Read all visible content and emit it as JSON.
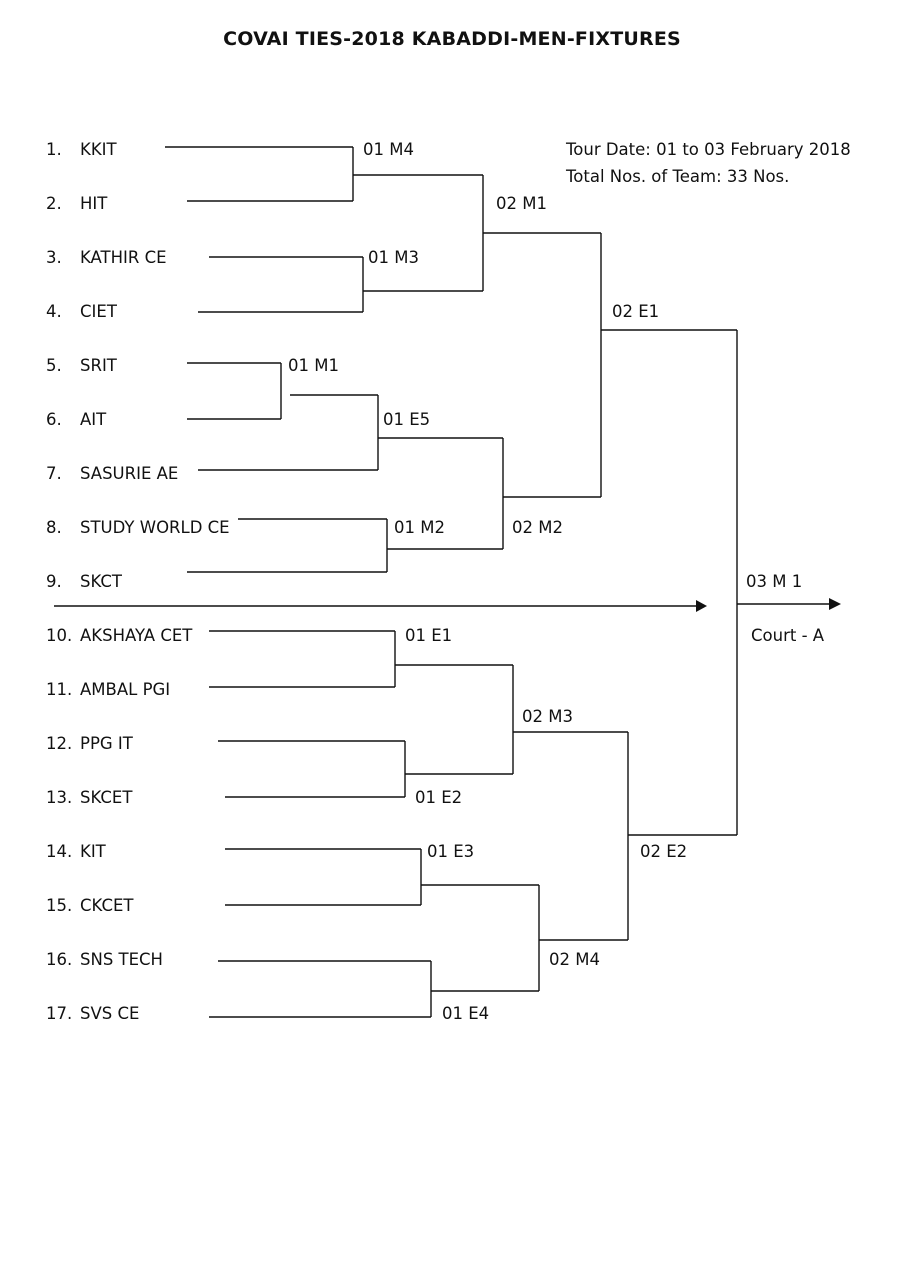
{
  "title": "COVAI TIES-2018 KABADDI-MEN-FIXTURES",
  "info": {
    "tour_date": "Tour Date: 01 to 03 February 2018",
    "total_teams": "Total Nos. of Team: 33 Nos."
  },
  "teams": [
    {
      "num": "1.",
      "name": "KKIT"
    },
    {
      "num": "2.",
      "name": "HIT"
    },
    {
      "num": "3.",
      "name": "KATHIR CE"
    },
    {
      "num": "4.",
      "name": "CIET"
    },
    {
      "num": "5.",
      "name": "SRIT"
    },
    {
      "num": "6.",
      "name": "AIT"
    },
    {
      "num": "7.",
      "name": "SASURIE AE"
    },
    {
      "num": "8.",
      "name": "STUDY WORLD CE"
    },
    {
      "num": "9.",
      "name": "SKCT"
    },
    {
      "num": "10.",
      "name": "AKSHAYA CET"
    },
    {
      "num": "11.",
      "name": "AMBAL PGI"
    },
    {
      "num": "12.",
      "name": "PPG IT"
    },
    {
      "num": "13.",
      "name": "SKCET"
    },
    {
      "num": "14.",
      "name": "KIT"
    },
    {
      "num": "15.",
      "name": "CKCET"
    },
    {
      "num": "16.",
      "name": "SNS TECH"
    },
    {
      "num": "17.",
      "name": "SVS CE"
    }
  ],
  "matches": {
    "m_01m4": "01 M4",
    "m_01m3": "01 M3",
    "m_01m1": "01 M1",
    "m_01e5": "01 E5",
    "m_01m2": "01 M2",
    "m_02m1": "02 M1",
    "m_02m2": "02 M2",
    "m_02e1": "02 E1",
    "m_01e1": "01 E1",
    "m_01e2": "01 E2",
    "m_01e3": "01 E3",
    "m_01e4": "01 E4",
    "m_02m3": "02 M3",
    "m_02m4": "02 M4",
    "m_02e2": "02 E2",
    "m_03m1": "03 M 1"
  },
  "court": "Court - A"
}
